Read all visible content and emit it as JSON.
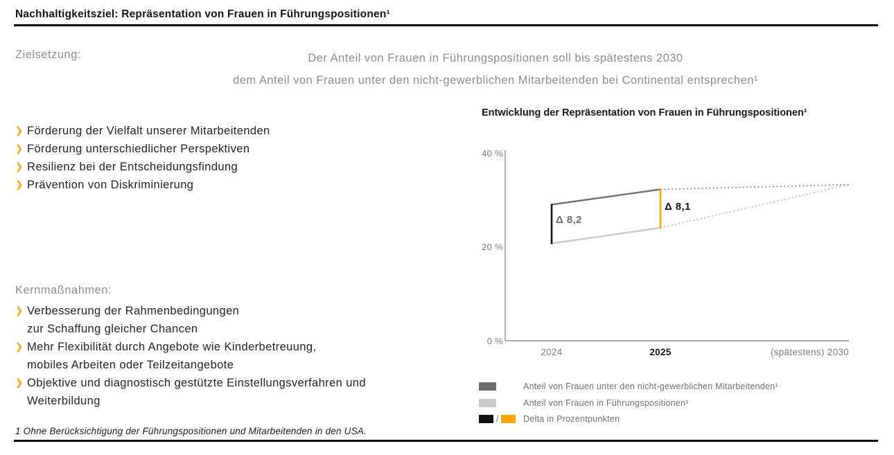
{
  "page": {
    "title": "Nachhaltigkeitsziel: Repräsentation von Frauen in Führungspositionen¹",
    "footnote": "1 Ohne Berücksichtigung der Führungspositionen und Mitarbeitenden in den USA."
  },
  "icons": {
    "bullet_chevron": "❯"
  },
  "objective": {
    "label": "Zielsetzung:",
    "text": "Der Anteil von Frauen in Führungspositionen soll bis spätestens 2030\ndem Anteil von Frauen unter den nicht-gewerblichen Mitarbeitenden bei Continental entsprechen¹"
  },
  "benefits": {
    "items": [
      "Förderung der Vielfalt unserer Mitarbeitenden",
      "Förderung unterschiedlicher Perspektiven",
      "Resilienz bei der Entscheidungsfindung",
      "Prävention von Diskriminierung"
    ]
  },
  "measures": {
    "label": "Kernmaßnahmen:",
    "items": [
      "Verbesserung der Rahmenbedingungen\nzur Schaffung gleicher Chancen",
      "Mehr Flexibilität durch Angebote wie Kinderbetreuung,\nmobiles Arbeiten oder Teilzeitangebote",
      "Objektive und diagnostisch gestützte Einstellungsverfahren und\nWeiterbildung"
    ]
  },
  "colors": {
    "accent_orange": "#FFA500",
    "dark_gray": "#6E6E6E",
    "light_gray": "#C9C9C9",
    "black": "#111111",
    "axis_gray": "#8F8F8F"
  },
  "chart_data": {
    "type": "line",
    "title": "Entwicklung der Repräsentation von Frauen in Führungspositionen¹",
    "x_categories": [
      "2024",
      "2025",
      "(spätestens) 2030"
    ],
    "emphasized_category": "2025",
    "ylim": [
      0,
      40
    ],
    "yticks": [
      {
        "value": 40,
        "label": "40 %"
      },
      {
        "value": 20,
        "label": "20 %"
      },
      {
        "value": 0,
        "label": "0 %"
      }
    ],
    "grid": false,
    "legend_position": "bottom",
    "series": [
      {
        "name": "Anteil von Frauen unter den nicht-gewerblichen Mitarbeitenden¹",
        "values": [
          28.7,
          31.9,
          32.9
        ],
        "color": "#6E6E6E",
        "dotted_color": "#8C8C8C",
        "dotted_from_index": 1
      },
      {
        "name": "Anteil von Frauen in Führungspositionen¹",
        "values": [
          20.5,
          23.8,
          32.9
        ],
        "color": "#C9C9C9",
        "dotted_color": "#BDBDBD",
        "dotted_from_index": 1
      }
    ],
    "deltas": [
      {
        "at": "2024",
        "label": "Δ 8,2",
        "value": 8.2,
        "line_color": "#111111",
        "label_color": "#6E6E6E"
      },
      {
        "at": "2025",
        "label": "Δ 8,1",
        "value": 8.1,
        "line_color": "#FFA500",
        "label_color": "#141414"
      }
    ],
    "legend": [
      {
        "swatches": [
          "#6E6E6E"
        ],
        "label": "Anteil von Frauen unter den nicht-gewerblichen Mitarbeitenden¹"
      },
      {
        "swatches": [
          "#C9C9C9"
        ],
        "label": "Anteil von Frauen in Führungspositionen¹"
      },
      {
        "swatches": [
          "#111111",
          "#FFA500"
        ],
        "separator": "/",
        "label": "Delta in Prozentpunkten"
      }
    ],
    "notes": "2024 and 2025 segments solid; 2025→2030 segments dotted projection converging at ~32.9 % by 2030"
  }
}
